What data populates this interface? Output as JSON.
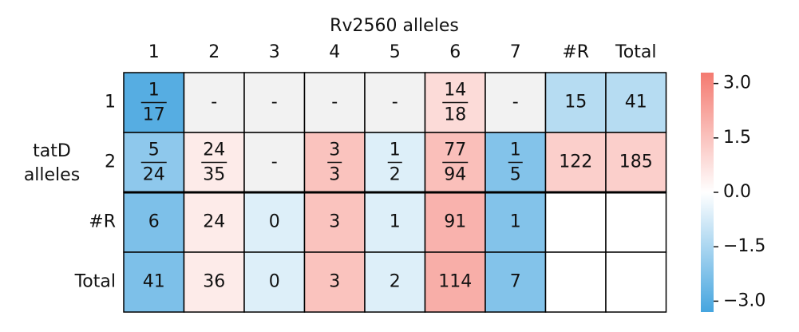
{
  "chart_data": {
    "type": "heatmap",
    "title": "Rv2560 alleles",
    "ylabel": "tatD alleles",
    "col_labels": [
      "1",
      "2",
      "3",
      "4",
      "5",
      "6",
      "7",
      "#R",
      "Total"
    ],
    "row_labels": [
      "1",
      "2",
      "#R",
      "Total"
    ],
    "cell_labels": [
      [
        {
          "num": "1",
          "den": "17"
        },
        "-",
        "-",
        "-",
        "-",
        {
          "num": "14",
          "den": "18"
        },
        "-",
        "15",
        "41"
      ],
      [
        {
          "num": "5",
          "den": "24"
        },
        {
          "num": "24",
          "den": "35"
        },
        "-",
        {
          "num": "3",
          "den": "3"
        },
        {
          "num": "1",
          "den": "2"
        },
        {
          "num": "77",
          "den": "94"
        },
        {
          "num": "1",
          "den": "5"
        },
        "122",
        "185"
      ],
      [
        "6",
        "24",
        "0",
        "3",
        "1",
        "91",
        "1",
        null,
        null
      ],
      [
        "41",
        "36",
        "0",
        "3",
        "2",
        "114",
        "7",
        null,
        null
      ]
    ],
    "values": [
      [
        -3.0,
        null,
        null,
        null,
        null,
        0.9,
        null,
        -1.3,
        -1.3
      ],
      [
        -2.0,
        0.5,
        null,
        1.5,
        -0.6,
        1.6,
        -2.2,
        1.2,
        1.2
      ],
      [
        -2.3,
        0.5,
        -0.6,
        1.5,
        -0.6,
        1.9,
        -2.2,
        null,
        null
      ],
      [
        -2.3,
        0.5,
        -0.6,
        1.5,
        -0.6,
        2.0,
        -2.2,
        null,
        null
      ]
    ],
    "clim": [
      -3.3,
      3.3
    ],
    "cticks": [
      {
        "value": 3.0,
        "label": "3.0"
      },
      {
        "value": 1.5,
        "label": "1.5"
      },
      {
        "value": 0.0,
        "label": "0.0"
      },
      {
        "value": -1.5,
        "label": "−1.5"
      },
      {
        "value": -3.0,
        "label": "−3.0"
      }
    ],
    "colormap": [
      "#45a5df",
      "#ffffff",
      "#f47a70"
    ],
    "missing_color": "#f2f2f2"
  }
}
